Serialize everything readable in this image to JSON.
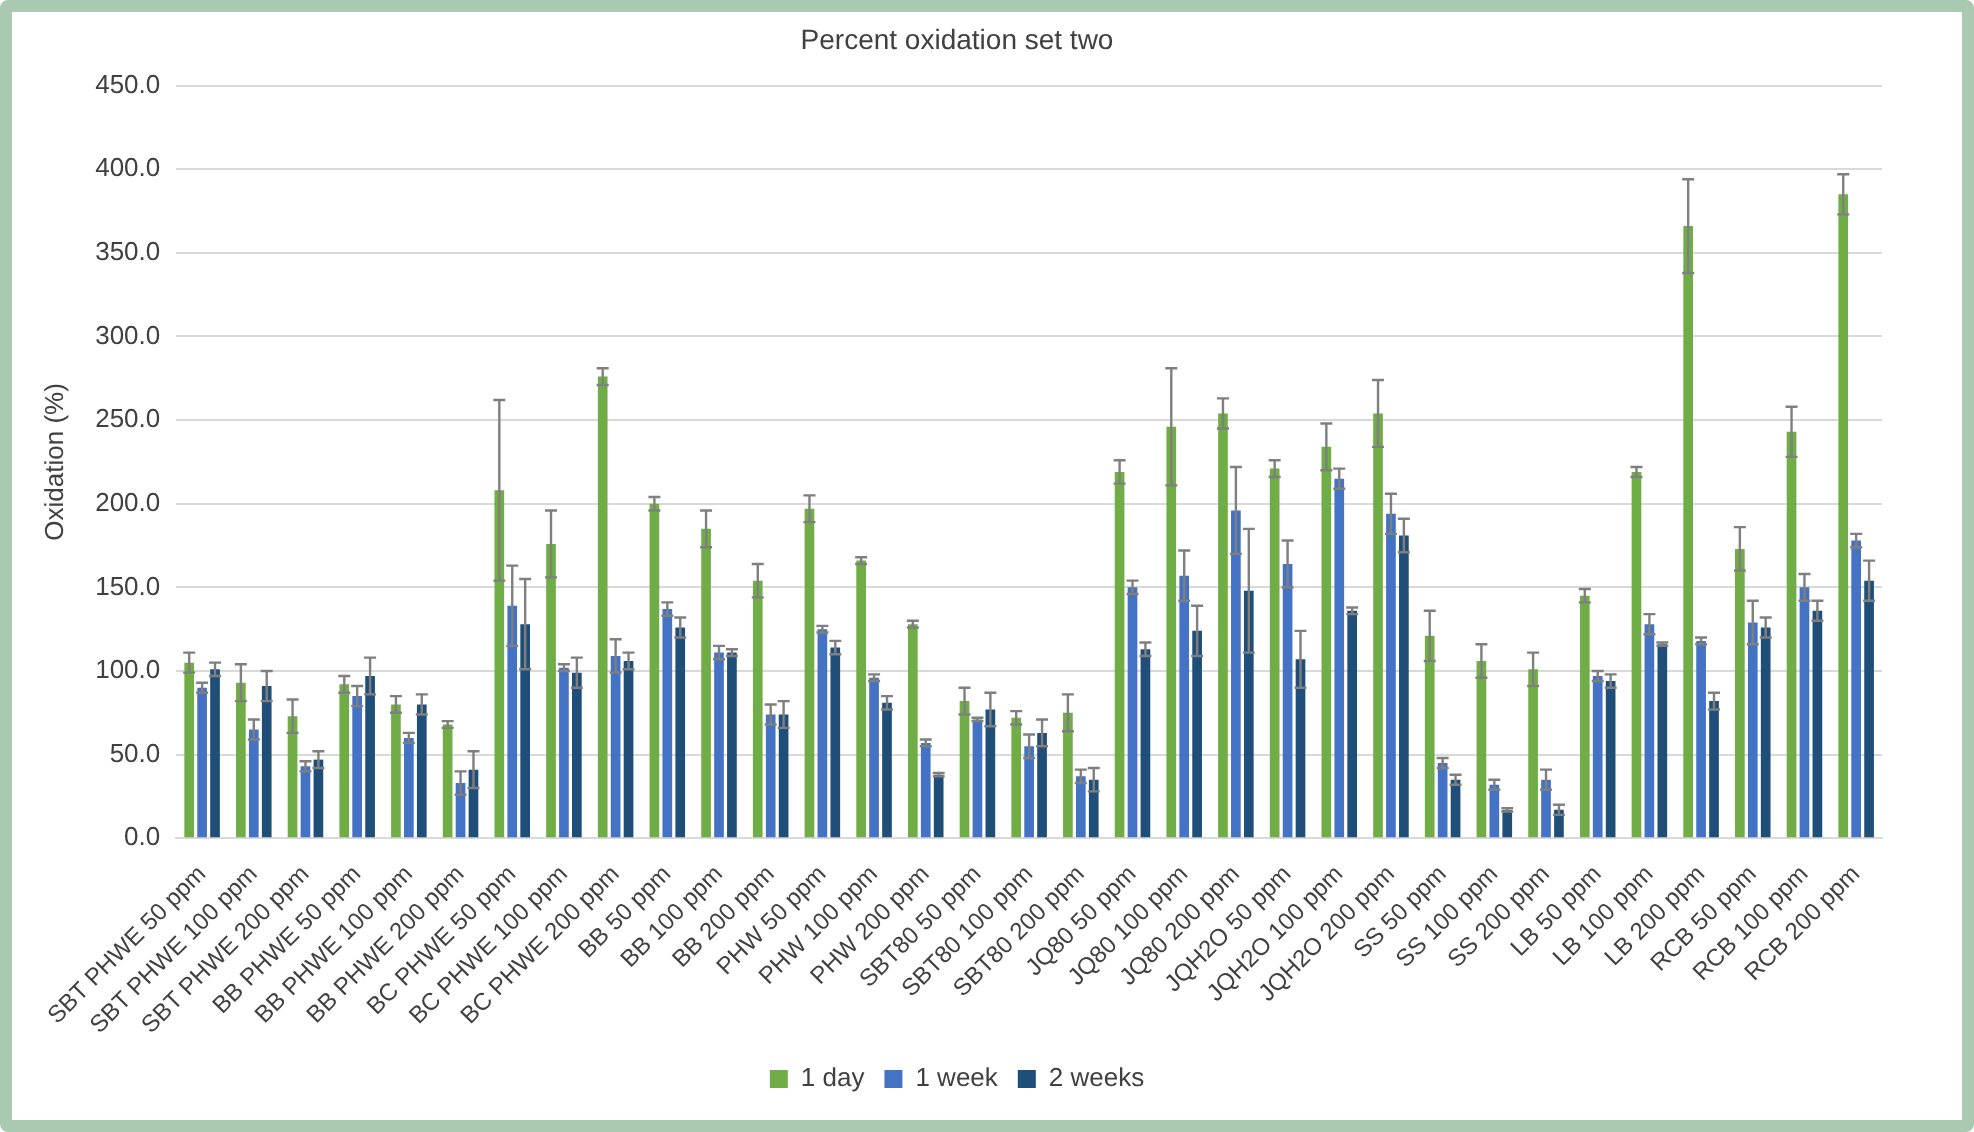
{
  "chart_data": {
    "type": "bar",
    "title": "Percent oxidation set two",
    "ylabel": "Oxidation (%)",
    "categories": [
      "SBT PHWE 50 ppm",
      "SBT PHWE 100 ppm",
      "SBT PHWE 200 ppm",
      "BB PHWE 50 ppm",
      "BB PHWE 100 ppm",
      "BB PHWE 200 ppm",
      "BC PHWE 50 ppm",
      "BC PHWE 100 ppm",
      "BC PHWE 200 ppm",
      "BB 50 ppm",
      "BB 100 ppm",
      "BB 200 ppm",
      "PHW 50 ppm",
      "PHW 100 ppm",
      "PHW 200 ppm",
      "SBT80 50 ppm",
      "SBT80 100 ppm",
      "SBT80 200 ppm",
      "JQ80 50 ppm",
      "JQ80 100 ppm",
      "JQ80 200 ppm",
      "JQH2O 50 ppm",
      "JQH2O 100 ppm",
      "JQH2O 200 ppm",
      "SS 50 ppm",
      "SS 100 ppm",
      "SS 200 ppm",
      "LB 50 ppm",
      "LB 100 ppm",
      "LB 200 ppm",
      "RCB 50 ppm",
      "RCB 100 ppm",
      "RCB 200 ppm"
    ],
    "series": [
      {
        "name": "1 day",
        "color": "#70ad47",
        "values": [
          105,
          93,
          73,
          92,
          80,
          68,
          208,
          176,
          276,
          200,
          185,
          154,
          197,
          166,
          128,
          82,
          72,
          75,
          219,
          246,
          254,
          221,
          234,
          254,
          121,
          106,
          101,
          145,
          219,
          366,
          173,
          243,
          385
        ],
        "errors": [
          6,
          11,
          10,
          5,
          5,
          2,
          54,
          20,
          5,
          4,
          11,
          10,
          8,
          2,
          2,
          8,
          4,
          11,
          7,
          35,
          9,
          5,
          14,
          20,
          15,
          10,
          10,
          4,
          3,
          28,
          13,
          15,
          12
        ]
      },
      {
        "name": "1 week",
        "color": "#4472c4",
        "values": [
          90,
          65,
          43,
          85,
          60,
          33,
          139,
          102,
          109,
          137,
          111,
          74,
          125,
          96,
          57,
          71,
          55,
          37,
          150,
          157,
          196,
          164,
          215,
          194,
          45,
          32,
          35,
          97,
          128,
          118,
          129,
          150,
          178
        ],
        "errors": [
          3,
          6,
          3,
          6,
          3,
          7,
          24,
          2,
          10,
          4,
          4,
          6,
          2,
          2,
          2,
          1,
          7,
          4,
          4,
          15,
          26,
          14,
          6,
          12,
          3,
          3,
          6,
          3,
          6,
          2,
          13,
          8,
          4
        ]
      },
      {
        "name": "2 weeks",
        "color": "#1f4e79",
        "values": [
          101,
          91,
          47,
          97,
          80,
          41,
          128,
          99,
          106,
          126,
          111,
          74,
          114,
          81,
          38,
          77,
          63,
          35,
          113,
          124,
          148,
          107,
          136,
          181,
          35,
          17,
          17,
          94,
          116,
          82,
          126,
          136,
          154
        ],
        "errors": [
          4,
          9,
          5,
          11,
          6,
          11,
          27,
          9,
          5,
          6,
          2,
          8,
          4,
          4,
          1,
          10,
          8,
          7,
          4,
          15,
          37,
          17,
          2,
          10,
          3,
          1,
          3,
          4,
          1,
          5,
          6,
          6,
          12
        ]
      }
    ],
    "ylim": [
      0,
      450
    ],
    "yticks": [
      {
        "value": 0,
        "label": "0.0"
      },
      {
        "value": 50,
        "label": "50.0"
      },
      {
        "value": 100,
        "label": "100.0"
      },
      {
        "value": 150,
        "label": "150.0"
      },
      {
        "value": 200,
        "label": "200.0"
      },
      {
        "value": 250,
        "label": "250.0"
      },
      {
        "value": 300,
        "label": "300.0"
      },
      {
        "value": 350,
        "label": "350.0"
      },
      {
        "value": 400,
        "label": "400.0"
      },
      {
        "value": 450,
        "label": "450.0"
      }
    ],
    "grid": "y",
    "legend": "bottom"
  }
}
